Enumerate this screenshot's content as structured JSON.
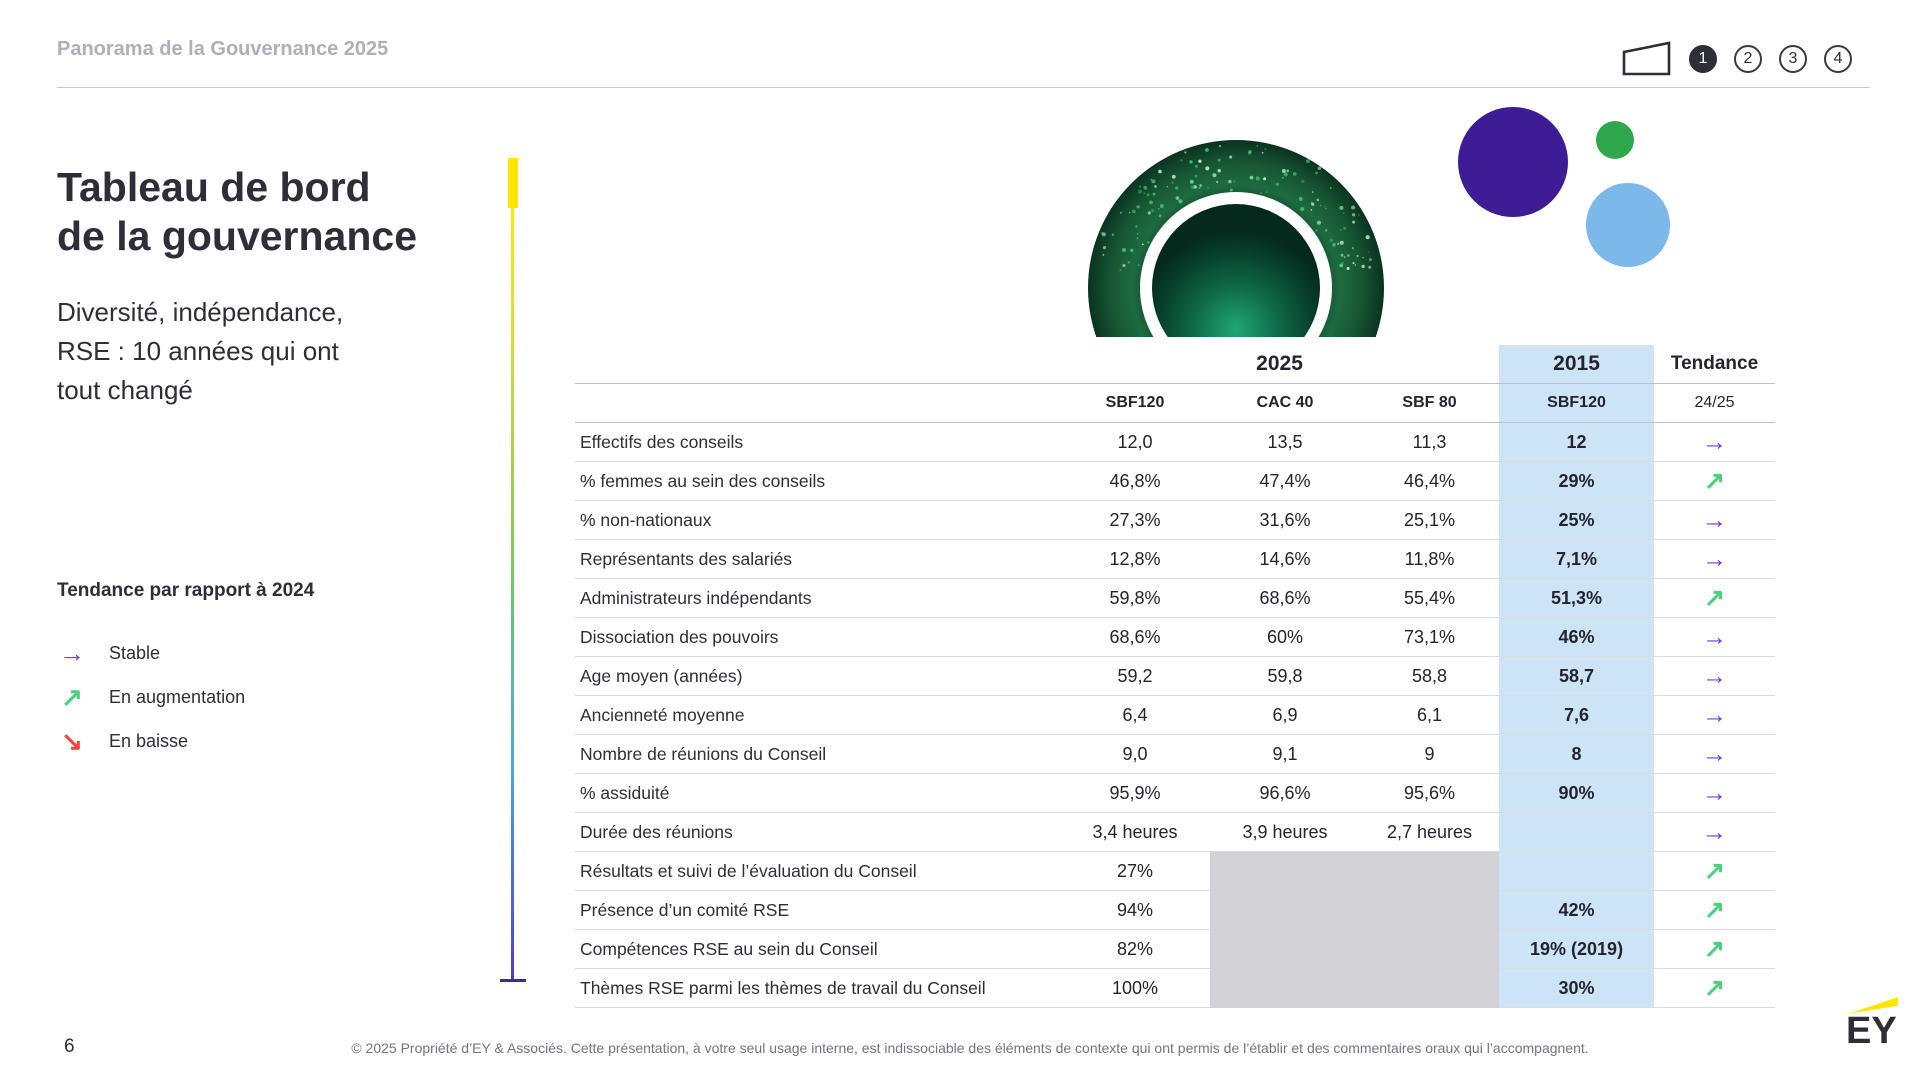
{
  "header": {
    "breadcrumb": "Panorama de la Gouvernance 2025",
    "nav_pages": [
      "1",
      "2",
      "3",
      "4"
    ],
    "active_page_index": 0
  },
  "title": {
    "lines": [
      "Tableau de bord",
      "de la gouvernance"
    ],
    "subtitle_lines": [
      "Diversité, indépendance,",
      "RSE : 10 années qui ont",
      "tout changé"
    ]
  },
  "legend": {
    "heading": "Tendance par rapport à 2024",
    "items": [
      {
        "trend": "stable",
        "label": "Stable"
      },
      {
        "trend": "up",
        "label": "En augmentation"
      },
      {
        "trend": "down",
        "label": "En baisse"
      }
    ]
  },
  "trend_arrows": {
    "stable": {
      "glyph": "→",
      "color": "#6B3CE8"
    },
    "up": {
      "glyph": "↗",
      "color": "#4CD07C"
    },
    "down": {
      "glyph": "↘",
      "color": "#F9423A"
    }
  },
  "table": {
    "year_groups": [
      {
        "label": "2025",
        "span": 3,
        "highlight": false
      },
      {
        "label": "2015",
        "span": 1,
        "highlight": true
      },
      {
        "label": "Tendance",
        "span": 1,
        "highlight": false
      }
    ],
    "columns": [
      "SBF120",
      "CAC 40",
      "SBF 80",
      "SBF120",
      "24/25"
    ],
    "highlight_column_index": 3,
    "rows": [
      {
        "label": "Effectifs des conseils",
        "sbf120": "12,0",
        "cac40": "13,5",
        "sbf80": "11,3",
        "y2015": "12",
        "trend": "stable",
        "grayed": false
      },
      {
        "label": "% femmes au sein des conseils",
        "sbf120": "46,8%",
        "cac40": "47,4%",
        "sbf80": "46,4%",
        "y2015": "29%",
        "trend": "up",
        "grayed": false
      },
      {
        "label": "% non-nationaux",
        "sbf120": "27,3%",
        "cac40": "31,6%",
        "sbf80": "25,1%",
        "y2015": "25%",
        "trend": "stable",
        "grayed": false
      },
      {
        "label": "Représentants des salariés",
        "sbf120": "12,8%",
        "cac40": "14,6%",
        "sbf80": "11,8%",
        "y2015": "7,1%",
        "trend": "stable",
        "grayed": false
      },
      {
        "label": "Administrateurs indépendants",
        "sbf120": "59,8%",
        "cac40": "68,6%",
        "sbf80": "55,4%",
        "y2015": "51,3%",
        "trend": "up",
        "grayed": false
      },
      {
        "label": "Dissociation des pouvoirs",
        "sbf120": "68,6%",
        "cac40": "60%",
        "sbf80": "73,1%",
        "y2015": "46%",
        "trend": "stable",
        "grayed": false
      },
      {
        "label": "Age moyen (années)",
        "sbf120": "59,2",
        "cac40": "59,8",
        "sbf80": "58,8",
        "y2015": "58,7",
        "trend": "stable",
        "grayed": false
      },
      {
        "label": "Ancienneté moyenne",
        "sbf120": "6,4",
        "cac40": "6,9",
        "sbf80": "6,1",
        "y2015": "7,6",
        "trend": "stable",
        "grayed": false
      },
      {
        "label": "Nombre de réunions du Conseil",
        "sbf120": "9,0",
        "cac40": "9,1",
        "sbf80": "9",
        "y2015": "8",
        "trend": "stable",
        "grayed": false
      },
      {
        "label": "% assiduité",
        "sbf120": "95,9%",
        "cac40": "96,6%",
        "sbf80": "95,6%",
        "y2015": "90%",
        "trend": "stable",
        "grayed": false
      },
      {
        "label": "Durée des réunions",
        "sbf120": "3,4 heures",
        "cac40": "3,9 heures",
        "sbf80": "2,7 heures",
        "y2015": "",
        "trend": "stable",
        "grayed": false
      },
      {
        "label": "Résultats et suivi de l’évaluation du Conseil",
        "sbf120": "27%",
        "cac40": null,
        "sbf80": null,
        "y2015": "",
        "trend": "up",
        "grayed": true
      },
      {
        "label": "Présence d’un comité RSE",
        "sbf120": "94%",
        "cac40": null,
        "sbf80": null,
        "y2015": "42%",
        "trend": "up",
        "grayed": true
      },
      {
        "label": "Compétences RSE au sein du Conseil",
        "sbf120": "82%",
        "cac40": null,
        "sbf80": null,
        "y2015": "19% (2019)",
        "trend": "up",
        "grayed": true
      },
      {
        "label": "Thèmes RSE parmi les thèmes de travail du Conseil",
        "sbf120": "100%",
        "cac40": null,
        "sbf80": null,
        "y2015": "30%",
        "trend": "up",
        "grayed": true
      }
    ]
  },
  "decoration": {
    "circles": [
      {
        "name": "purple-circle",
        "color": "#3E1C96"
      },
      {
        "name": "green-circle",
        "color": "#2FA84D"
      },
      {
        "name": "blue-circle",
        "color": "#7CB8E9"
      }
    ]
  },
  "footer": {
    "page_number": "6",
    "copyright": "© 2025 Propriété d’EY & Associés. Cette présentation, à votre seul usage interne, est indissociable des éléments de contexte qui ont permis de l’établir et des commentaires oraux qui l’accompagnent.",
    "logo_text": "EY"
  },
  "colors": {
    "accent_yellow": "#FFE600",
    "highlight_blue": "#CDE4F6",
    "masked_gray": "#D1D1D6",
    "dark": "#2E2E38"
  }
}
